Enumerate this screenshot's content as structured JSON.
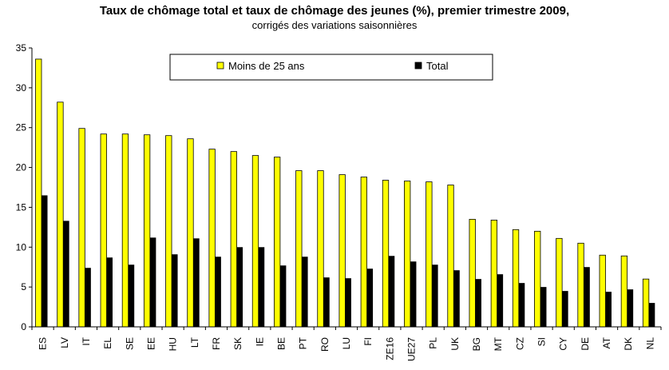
{
  "chart_data": {
    "type": "bar",
    "title": "Taux de chômage total et taux de chômage des jeunes (%), premier trimestre 2009,",
    "subtitle": "corrigés des variations saisonnières",
    "xlabel": "",
    "ylabel": "",
    "ylim": [
      0,
      35
    ],
    "yticks": [
      "0",
      "5",
      "10",
      "15",
      "20",
      "25",
      "30",
      "35"
    ],
    "grid": false,
    "legend_position": "top-center",
    "categories": [
      "ES",
      "LV",
      "IT",
      "EL",
      "SE",
      "EE",
      "HU",
      "LT",
      "FR",
      "SK",
      "IE",
      "BE",
      "PT",
      "RO",
      "LU",
      "FI",
      "ZE16",
      "UE27",
      "PL",
      "UK",
      "BG",
      "MT",
      "CZ",
      "SI",
      "CY",
      "DE",
      "AT",
      "DK",
      "NL"
    ],
    "series": [
      {
        "name": "Moins de 25 ans",
        "color": "#ffff00",
        "values": [
          33.6,
          28.2,
          24.9,
          24.2,
          24.2,
          24.1,
          24.0,
          23.6,
          22.3,
          22.0,
          21.5,
          21.3,
          19.6,
          19.6,
          19.1,
          18.8,
          18.4,
          18.3,
          18.2,
          17.8,
          13.5,
          13.4,
          12.2,
          12.0,
          11.1,
          10.5,
          9.0,
          8.9,
          6.0
        ]
      },
      {
        "name": "Total",
        "color": "#000000",
        "values": [
          16.5,
          13.3,
          7.4,
          8.7,
          7.8,
          11.2,
          9.1,
          11.1,
          8.8,
          10.0,
          10.0,
          7.7,
          8.8,
          6.2,
          6.1,
          7.3,
          8.9,
          8.2,
          7.8,
          7.1,
          6.0,
          6.6,
          5.5,
          5.0,
          4.5,
          7.5,
          4.4,
          4.7,
          3.0
        ]
      }
    ]
  }
}
